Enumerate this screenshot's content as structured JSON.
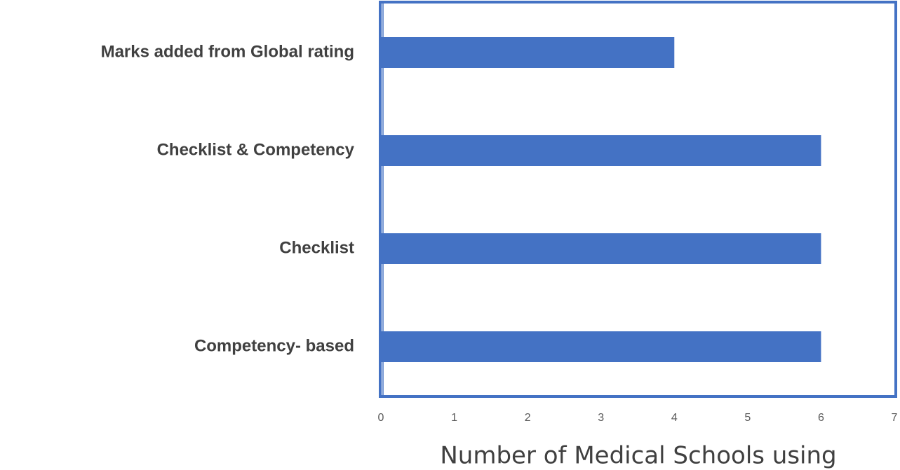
{
  "chart_data": {
    "type": "bar",
    "orientation": "horizontal",
    "categories": [
      "Marks added from Global rating",
      "Checklist & Competency",
      "Checklist",
      "Competency- based"
    ],
    "values": [
      4,
      6,
      6,
      6
    ],
    "color": "#4472c4",
    "xlim": [
      0,
      7
    ],
    "xticks": [
      0,
      1,
      2,
      3,
      4,
      5,
      6,
      7
    ],
    "x_label": "Number of Medical Schools using"
  }
}
